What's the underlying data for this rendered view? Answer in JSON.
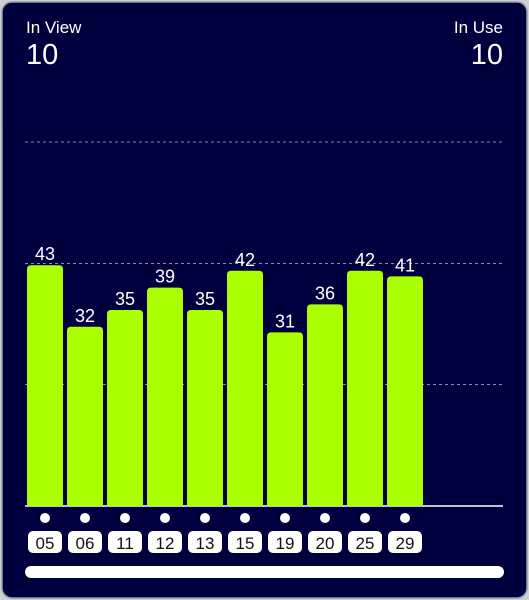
{
  "header": {
    "left_label": "In View",
    "left_value": 10,
    "right_label": "In Use",
    "right_value": 10
  },
  "chart_data": {
    "type": "bar",
    "categories": [
      "05",
      "06",
      "11",
      "12",
      "13",
      "15",
      "19",
      "20",
      "25",
      "29"
    ],
    "values": [
      43,
      32,
      35,
      39,
      35,
      42,
      31,
      36,
      42,
      41
    ],
    "color": "#aaff00",
    "ylim": [
      0,
      65
    ],
    "yticks": [
      21.7,
      43.3,
      65
    ],
    "grid": true
  }
}
